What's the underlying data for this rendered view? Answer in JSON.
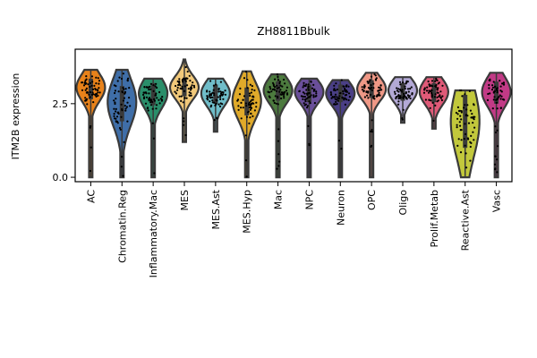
{
  "chart_data": {
    "type": "violin",
    "title": "ZH8811Bbulk",
    "ylabel": "ITM2B expression",
    "xlabel": "",
    "ylim": [
      -0.15,
      4.35
    ],
    "yticks": [
      0.0,
      2.5
    ],
    "yticklabels": [
      "0.0",
      "2.5"
    ],
    "categories": [
      "AC",
      "Chromatin.Reg",
      "Inflammatory.Mac",
      "MES",
      "MES.Ast",
      "MES.Hyp",
      "Mac",
      "NPC",
      "Neuron",
      "OPC",
      "Oligo",
      "Prolif.Metab",
      "Reactive.Ast",
      "Vasc"
    ],
    "colors": [
      "#e8821a",
      "#3f6ea8",
      "#2a8e6a",
      "#f2c97a",
      "#6fbdc9",
      "#e0aa2a",
      "#4c7a3e",
      "#6a4f9a",
      "#4a3f86",
      "#ef9886",
      "#b3a9d6",
      "#e05a78",
      "#c2c83c",
      "#c23a86"
    ],
    "groups": [
      {
        "min": 0.0,
        "max": 3.65,
        "q1": 2.65,
        "median": 3.05,
        "q3": 3.35
      },
      {
        "min": 0.0,
        "max": 3.65,
        "q1": 1.9,
        "median": 2.55,
        "q3": 3.1
      },
      {
        "min": 0.0,
        "max": 3.35,
        "q1": 2.45,
        "median": 2.85,
        "q3": 3.2
      },
      {
        "min": 1.2,
        "max": 4.0,
        "q1": 2.75,
        "median": 3.05,
        "q3": 3.35
      },
      {
        "min": 1.55,
        "max": 3.35,
        "q1": 2.5,
        "median": 2.85,
        "q3": 3.15
      },
      {
        "min": 0.0,
        "max": 3.6,
        "q1": 2.1,
        "median": 2.6,
        "q3": 3.05
      },
      {
        "min": 0.0,
        "max": 3.5,
        "q1": 2.6,
        "median": 2.95,
        "q3": 3.25
      },
      {
        "min": 0.0,
        "max": 3.35,
        "q1": 2.55,
        "median": 2.9,
        "q3": 3.15
      },
      {
        "min": 0.0,
        "max": 3.3,
        "q1": 2.55,
        "median": 2.85,
        "q3": 3.15
      },
      {
        "min": 0.0,
        "max": 3.55,
        "q1": 2.7,
        "median": 3.0,
        "q3": 3.3
      },
      {
        "min": 1.85,
        "max": 3.4,
        "q1": 2.6,
        "median": 2.95,
        "q3": 3.2
      },
      {
        "min": 1.65,
        "max": 3.4,
        "q1": 2.55,
        "median": 2.9,
        "q3": 3.2
      },
      {
        "min": 0.0,
        "max": 2.95,
        "q1": 1.0,
        "median": 1.9,
        "q3": 2.8
      },
      {
        "min": 0.0,
        "max": 3.55,
        "q1": 2.5,
        "median": 2.9,
        "q3": 3.25
      }
    ],
    "points_shown": true,
    "grid": false
  }
}
